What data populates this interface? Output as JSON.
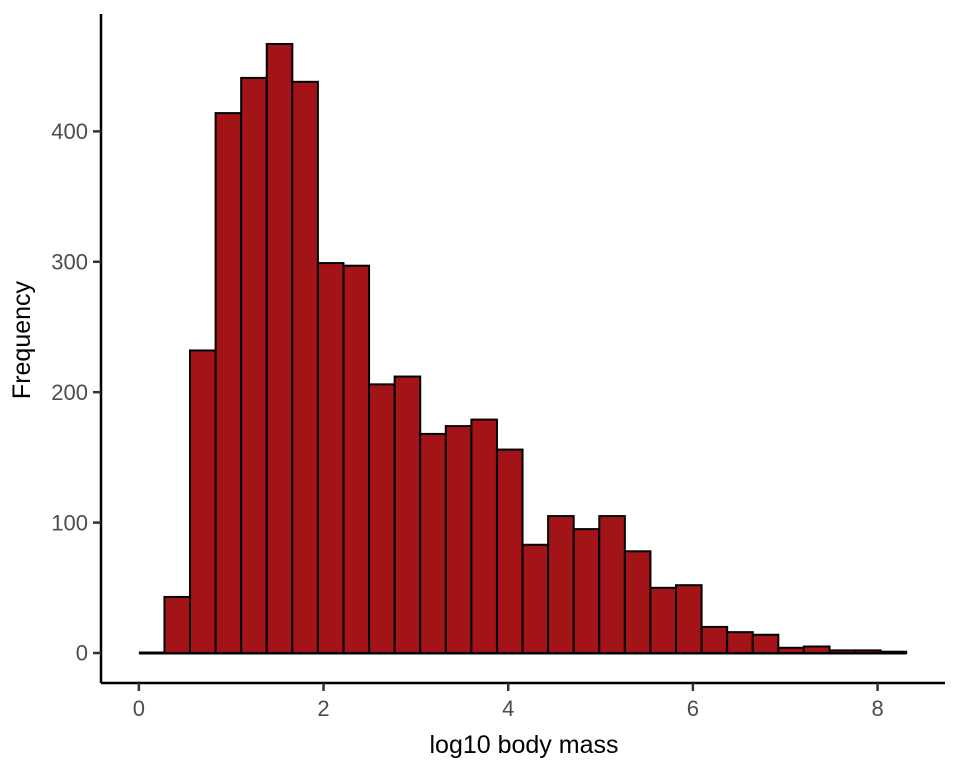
{
  "figure": {
    "background": "#FFFFFF"
  },
  "chart_data": {
    "type": "histogram",
    "title": "",
    "xlabel": "log10 body mass",
    "ylabel": "Frequency",
    "bar_fill": "#A31418",
    "bar_stroke": "#000000",
    "tick_label_color": "#4D4D4D",
    "axis_line_color": "#000000",
    "bin_start": 0,
    "bin_width": 0.277,
    "counts": [
      0,
      43,
      232,
      414,
      441,
      467,
      438,
      299,
      297,
      206,
      212,
      168,
      174,
      179,
      156,
      83,
      105,
      95,
      105,
      78,
      50,
      52,
      20,
      16,
      14,
      4,
      5,
      2,
      2,
      1
    ],
    "x_ticks": [
      0,
      2,
      4,
      6,
      8
    ],
    "y_ticks": [
      0,
      100,
      200,
      300,
      400
    ],
    "x_axis_range": [
      -0.41,
      8.73
    ],
    "y_axis_range": [
      -23,
      490
    ],
    "grid": "off",
    "legend": "none"
  }
}
